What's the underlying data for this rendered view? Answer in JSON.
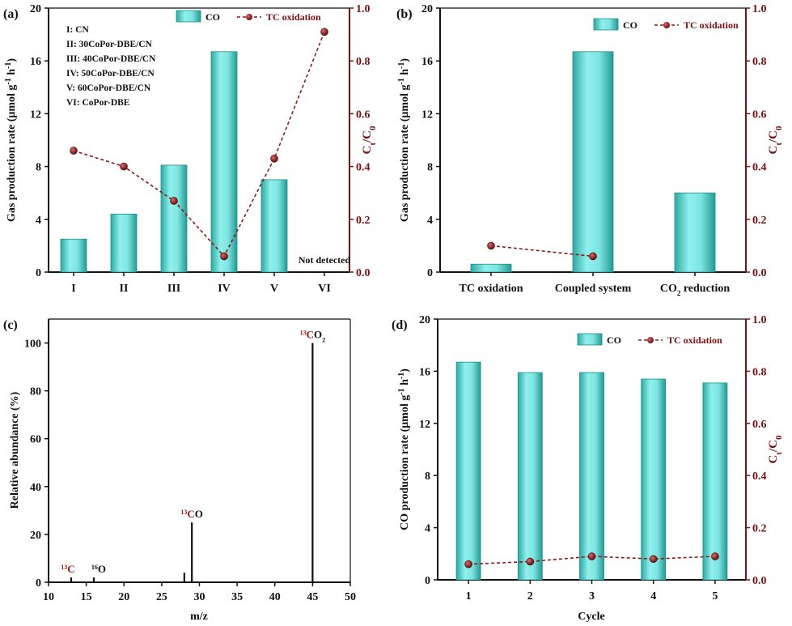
{
  "chart_data": [
    {
      "panel": "(a)",
      "type": "bar+line",
      "categories": [
        "I",
        "II",
        "III",
        "IV",
        "V",
        "VI"
      ],
      "series": [
        {
          "name": "CO",
          "axis": "left",
          "kind": "bar",
          "values": [
            2.5,
            4.4,
            8.1,
            16.7,
            7.0,
            null
          ]
        },
        {
          "name": "TC oxidation",
          "axis": "right",
          "kind": "line",
          "values": [
            0.46,
            0.4,
            0.27,
            0.06,
            0.43,
            0.91
          ]
        }
      ],
      "ylabel": "Gas production rate (μmol g⁻¹ h⁻¹)",
      "y2label": "Ct/C0",
      "ylim": [
        0,
        20
      ],
      "yticks": [
        0,
        4,
        8,
        12,
        16,
        20
      ],
      "y2lim": [
        0,
        1.0
      ],
      "y2ticks": [
        0.0,
        0.2,
        0.4,
        0.6,
        0.8,
        1.0
      ],
      "sample_labels": [
        "I: CN",
        "II: 30CoPor-DBE/CN",
        "III: 40CoPor-DBE/CN",
        "IV: 50CoPor-DBE/CN",
        "V: 60CoPor-DBE/CN",
        "VI: CoPor-DBE"
      ],
      "annotation": "Not detected"
    },
    {
      "panel": "(b)",
      "type": "bar+line",
      "categories": [
        "TC oxidation",
        "Coupled system",
        "CO₂ reduction"
      ],
      "series": [
        {
          "name": "CO",
          "axis": "left",
          "kind": "bar",
          "values": [
            0.6,
            16.7,
            6.0
          ]
        },
        {
          "name": "TC oxidation",
          "axis": "right",
          "kind": "line",
          "values": [
            0.1,
            0.06,
            null
          ]
        }
      ],
      "ylabel": "Gas production rate (μmol g⁻¹ h⁻¹)",
      "y2label": "Ct/C0",
      "ylim": [
        0,
        20
      ],
      "yticks": [
        0,
        4,
        8,
        12,
        16,
        20
      ],
      "y2lim": [
        0,
        1.0
      ],
      "y2ticks": [
        0.0,
        0.2,
        0.4,
        0.6,
        0.8,
        1.0
      ]
    },
    {
      "panel": "(c)",
      "type": "bar",
      "series": [
        {
          "name": "peaks",
          "points": [
            {
              "x": 13,
              "y": 2,
              "label": "13C"
            },
            {
              "x": 16,
              "y": 2,
              "label": "16O"
            },
            {
              "x": 28,
              "y": 4,
              "label": ""
            },
            {
              "x": 29,
              "y": 25,
              "label": "13CO"
            },
            {
              "x": 45,
              "y": 100,
              "label": "13CO2"
            }
          ]
        }
      ],
      "xlabel": "m/z",
      "ylabel": "Relative abundance (%)",
      "xlim": [
        10,
        50
      ],
      "xticks": [
        10,
        15,
        20,
        25,
        30,
        35,
        40,
        45,
        50
      ],
      "ylim": [
        0,
        110
      ],
      "yticks": [
        0,
        20,
        40,
        60,
        80,
        100
      ]
    },
    {
      "panel": "(d)",
      "type": "bar+line",
      "categories": [
        "1",
        "2",
        "3",
        "4",
        "5"
      ],
      "series": [
        {
          "name": "CO",
          "axis": "left",
          "kind": "bar",
          "values": [
            16.7,
            15.9,
            15.9,
            15.4,
            15.1
          ]
        },
        {
          "name": "TC oxidation",
          "axis": "right",
          "kind": "line",
          "values": [
            0.06,
            0.07,
            0.09,
            0.08,
            0.09
          ]
        }
      ],
      "xlabel": "Cycle",
      "ylabel": "CO production rate (μmol g⁻¹ h⁻¹)",
      "y2label": "Ct/C0",
      "ylim": [
        0,
        20
      ],
      "yticks": [
        0,
        4,
        8,
        12,
        16,
        20
      ],
      "y2lim": [
        0,
        1.0
      ],
      "y2ticks": [
        0.0,
        0.2,
        0.4,
        0.6,
        0.8,
        1.0
      ]
    }
  ],
  "colors": {
    "bar_fill": "#6fd8d4",
    "bar_edge": "#1c8f8a",
    "line": "#8b1a1a",
    "axis_right": "#7a1010"
  }
}
